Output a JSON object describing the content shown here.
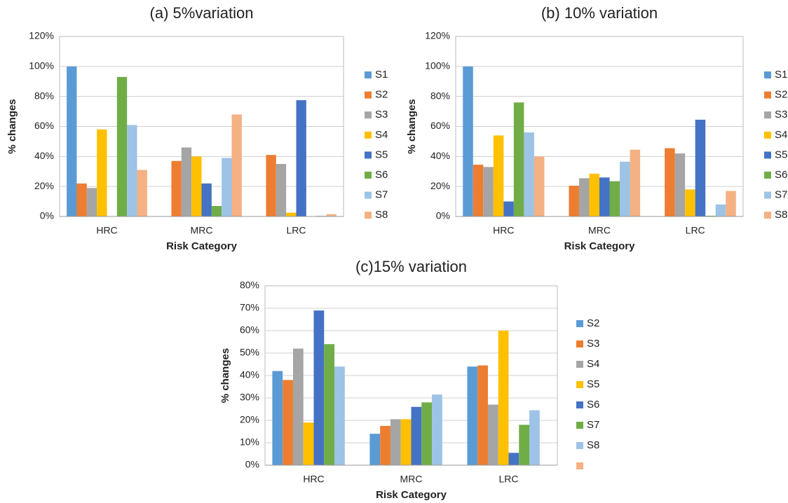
{
  "chart_data": [
    {
      "type": "bar",
      "title": "(a) 5%variation",
      "x_label": "Risk Category",
      "y_label": "% changes",
      "categories": [
        "HRC",
        "MRC",
        "LRC"
      ],
      "ylim": [
        0,
        120
      ],
      "yticks": [
        {
          "value": 0,
          "label": "0%"
        },
        {
          "value": 20,
          "label": "20%"
        },
        {
          "value": 40,
          "label": "40%"
        },
        {
          "value": 60,
          "label": "60%"
        },
        {
          "value": 80,
          "label": "80%"
        },
        {
          "value": 100,
          "label": "100%"
        },
        {
          "value": 120,
          "label": "120%"
        }
      ],
      "grid": true,
      "legend": "right",
      "series": [
        {
          "name": "S1",
          "color": "#5b9bd5",
          "values": [
            100,
            0,
            0
          ]
        },
        {
          "name": "S2",
          "color": "#ed7d31",
          "values": [
            22,
            37,
            41
          ]
        },
        {
          "name": "S3",
          "color": "#a5a5a5",
          "values": [
            19,
            46,
            35
          ]
        },
        {
          "name": "S4",
          "color": "#ffc000",
          "values": [
            58,
            40,
            2.5
          ]
        },
        {
          "name": "S5",
          "color": "#4472c4",
          "values": [
            0,
            22,
            77.5
          ]
        },
        {
          "name": "S6",
          "color": "#70ad47",
          "values": [
            93,
            7,
            0
          ]
        },
        {
          "name": "S7",
          "color": "#9dc3e6",
          "values": [
            61,
            39,
            0.5
          ]
        },
        {
          "name": "S8",
          "color": "#f4b183",
          "values": [
            31,
            68,
            1.5
          ]
        }
      ]
    },
    {
      "type": "bar",
      "title": "(b) 10% variation",
      "x_label": "Risk Category",
      "y_label": "% changes",
      "categories": [
        "HRC",
        "MRC",
        "LRC"
      ],
      "ylim": [
        0,
        120
      ],
      "yticks": [
        {
          "value": 0,
          "label": "0%"
        },
        {
          "value": 20,
          "label": "20%"
        },
        {
          "value": 40,
          "label": "40%"
        },
        {
          "value": 60,
          "label": "60%"
        },
        {
          "value": 80,
          "label": "80%"
        },
        {
          "value": 100,
          "label": "100%"
        },
        {
          "value": 120,
          "label": "120%"
        }
      ],
      "grid": true,
      "legend": "right",
      "series": [
        {
          "name": "S1",
          "color": "#5b9bd5",
          "values": [
            100,
            0,
            0
          ]
        },
        {
          "name": "S2",
          "color": "#ed7d31",
          "values": [
            34.5,
            20.5,
            45.5
          ]
        },
        {
          "name": "S3",
          "color": "#a5a5a5",
          "values": [
            33,
            25.5,
            42
          ]
        },
        {
          "name": "S4",
          "color": "#ffc000",
          "values": [
            54,
            28.5,
            18
          ]
        },
        {
          "name": "S5",
          "color": "#4472c4",
          "values": [
            10,
            26,
            64.5
          ]
        },
        {
          "name": "S6",
          "color": "#70ad47",
          "values": [
            76,
            23.5,
            0.5
          ]
        },
        {
          "name": "S7",
          "color": "#9dc3e6",
          "values": [
            56,
            36.5,
            8
          ]
        },
        {
          "name": "S8",
          "color": "#f4b183",
          "values": [
            40,
            44.5,
            17
          ]
        }
      ]
    },
    {
      "type": "bar",
      "title": "(c)15% variation",
      "x_label": "Risk Category",
      "y_label": "% changes",
      "categories": [
        "HRC",
        "MRC",
        "LRC"
      ],
      "ylim": [
        0,
        80
      ],
      "yticks": [
        {
          "value": 0,
          "label": "0%"
        },
        {
          "value": 10,
          "label": "10%"
        },
        {
          "value": 20,
          "label": "20%"
        },
        {
          "value": 30,
          "label": "30%"
        },
        {
          "value": 40,
          "label": "40%"
        },
        {
          "value": 50,
          "label": "50%"
        },
        {
          "value": 60,
          "label": "60%"
        },
        {
          "value": 70,
          "label": "70%"
        },
        {
          "value": 80,
          "label": "80%"
        }
      ],
      "grid": true,
      "legend": "right",
      "series": [
        {
          "name": "S2",
          "color": "#5b9bd5",
          "values": [
            42,
            14,
            44
          ]
        },
        {
          "name": "S3",
          "color": "#ed7d31",
          "values": [
            38,
            17.5,
            44.5
          ]
        },
        {
          "name": "S4",
          "color": "#a5a5a5",
          "values": [
            52,
            20.5,
            27
          ]
        },
        {
          "name": "S5",
          "color": "#ffc000",
          "values": [
            19,
            20.5,
            60
          ]
        },
        {
          "name": "S6",
          "color": "#4472c4",
          "values": [
            69,
            26,
            5.5
          ]
        },
        {
          "name": "S7",
          "color": "#70ad47",
          "values": [
            54,
            28,
            18
          ]
        },
        {
          "name": "S8",
          "color": "#9dc3e6",
          "values": [
            44,
            31.5,
            24.5
          ]
        },
        {
          "name": null,
          "color": "#f4b183",
          "values": [
            null,
            null,
            null
          ]
        }
      ]
    }
  ]
}
